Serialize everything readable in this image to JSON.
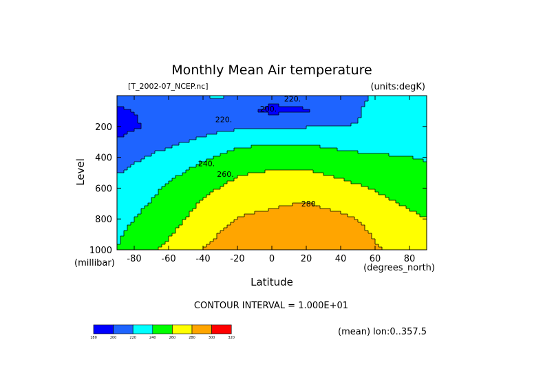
{
  "chart_data": {
    "type": "heatmap",
    "title": "Monthly Mean Air temperature",
    "source_label": "[T_2002-07_NCEP.nc]",
    "units_label": "(units:degK)",
    "xlabel": "Latitude",
    "x_units_label": "(degrees_north)",
    "ylabel": "Level",
    "y_units_label": "(millibar)",
    "xlim": [
      -90,
      90
    ],
    "ylim": [
      0,
      1000
    ],
    "y_inverted": true,
    "x_ticks": [
      "-80",
      "-60",
      "-40",
      "-20",
      "0",
      "20",
      "40",
      "60",
      "80"
    ],
    "x_tick_values": [
      -80,
      -60,
      -40,
      -20,
      0,
      20,
      40,
      60,
      80
    ],
    "y_ticks": [
      "200",
      "400",
      "600",
      "800",
      "1000"
    ],
    "y_tick_values": [
      200,
      400,
      600,
      800,
      1000
    ],
    "contour_interval_text": "CONTOUR INTERVAL = 1.000E+01",
    "footer_note": "(mean) lon:0..357.5",
    "contour_labels": [
      {
        "text": "220.",
        "lat": 12,
        "lev": 20
      },
      {
        "text": "200.",
        "lat": -2,
        "lev": 85
      },
      {
        "text": "220.",
        "lat": -28,
        "lev": 155
      },
      {
        "text": "240.",
        "lat": -38,
        "lev": 440
      },
      {
        "text": "260.",
        "lat": -27,
        "lev": 510
      },
      {
        "text": "280.",
        "lat": 22,
        "lev": 700
      }
    ],
    "color_levels": [
      180,
      200,
      220,
      240,
      260,
      280,
      300,
      320
    ],
    "color_level_labels": [
      "180",
      "200",
      "220",
      "240",
      "260",
      "280",
      "300",
      "320"
    ],
    "colors": [
      "#0000ff",
      "#1e64ff",
      "#00ffff",
      "#00ff00",
      "#ffff00",
      "#ffa500",
      "#ff0000"
    ],
    "sample_profiles": [
      {
        "lev": 0,
        "points": [
          [
            -90,
            205
          ],
          [
            -60,
            215
          ],
          [
            -30,
            222
          ],
          [
            -10,
            210
          ],
          [
            0,
            205
          ],
          [
            15,
            208
          ],
          [
            45,
            215
          ],
          [
            70,
            225
          ],
          [
            90,
            232
          ]
        ]
      },
      {
        "lev": 100,
        "points": [
          [
            -90,
            197
          ],
          [
            -65,
            205
          ],
          [
            -35,
            212
          ],
          [
            -20,
            205
          ],
          [
            0,
            196
          ],
          [
            20,
            198
          ],
          [
            40,
            211
          ],
          [
            55,
            222
          ],
          [
            90,
            234
          ]
        ]
      },
      {
        "lev": 200,
        "points": [
          [
            -90,
            193
          ],
          [
            -70,
            203
          ],
          [
            -40,
            213
          ],
          [
            -10,
            218
          ],
          [
            20,
            219
          ],
          [
            50,
            221
          ],
          [
            90,
            231
          ]
        ]
      },
      {
        "lev": 300,
        "points": [
          [
            -90,
            202
          ],
          [
            -70,
            212
          ],
          [
            -40,
            224
          ],
          [
            -20,
            235
          ],
          [
            0,
            238
          ],
          [
            20,
            238
          ],
          [
            50,
            232
          ],
          [
            90,
            228
          ]
        ]
      },
      {
        "lev": 400,
        "points": [
          [
            -90,
            212
          ],
          [
            -70,
            222
          ],
          [
            -40,
            237
          ],
          [
            -20,
            248
          ],
          [
            0,
            249
          ],
          [
            20,
            250
          ],
          [
            50,
            244
          ],
          [
            90,
            239
          ]
        ]
      },
      {
        "lev": 500,
        "points": [
          [
            -90,
            219
          ],
          [
            -70,
            229
          ],
          [
            -40,
            247
          ],
          [
            -20,
            258
          ],
          [
            0,
            262
          ],
          [
            20,
            262
          ],
          [
            50,
            254
          ],
          [
            90,
            242
          ]
        ]
      },
      {
        "lev": 600,
        "points": [
          [
            -90,
            225
          ],
          [
            -70,
            236
          ],
          [
            -40,
            255
          ],
          [
            -20,
            266
          ],
          [
            0,
            270
          ],
          [
            20,
            272
          ],
          [
            50,
            262
          ],
          [
            90,
            248
          ]
        ]
      },
      {
        "lev": 700,
        "points": [
          [
            -90,
            231
          ],
          [
            -70,
            241
          ],
          [
            -40,
            262
          ],
          [
            -20,
            274
          ],
          [
            0,
            278
          ],
          [
            20,
            281
          ],
          [
            50,
            271
          ],
          [
            90,
            252
          ]
        ]
      },
      {
        "lev": 800,
        "points": [
          [
            -90,
            235
          ],
          [
            -70,
            245
          ],
          [
            -40,
            268
          ],
          [
            -20,
            281
          ],
          [
            0,
            284
          ],
          [
            20,
            287
          ],
          [
            40,
            284
          ],
          [
            60,
            274
          ],
          [
            90,
            260
          ]
        ]
      },
      {
        "lev": 900,
        "points": [
          [
            -90,
            238
          ],
          [
            -70,
            250
          ],
          [
            -40,
            275
          ],
          [
            -20,
            287
          ],
          [
            0,
            290
          ],
          [
            20,
            292
          ],
          [
            40,
            290
          ],
          [
            60,
            279
          ],
          [
            90,
            270
          ]
        ]
      },
      {
        "lev": 1000,
        "points": [
          [
            -90,
            240
          ],
          [
            -70,
            257
          ],
          [
            -40,
            280
          ],
          [
            -20,
            289
          ],
          [
            0,
            292
          ],
          [
            20,
            294
          ],
          [
            40,
            292
          ],
          [
            60,
            281
          ],
          [
            90,
            274
          ]
        ]
      }
    ]
  }
}
